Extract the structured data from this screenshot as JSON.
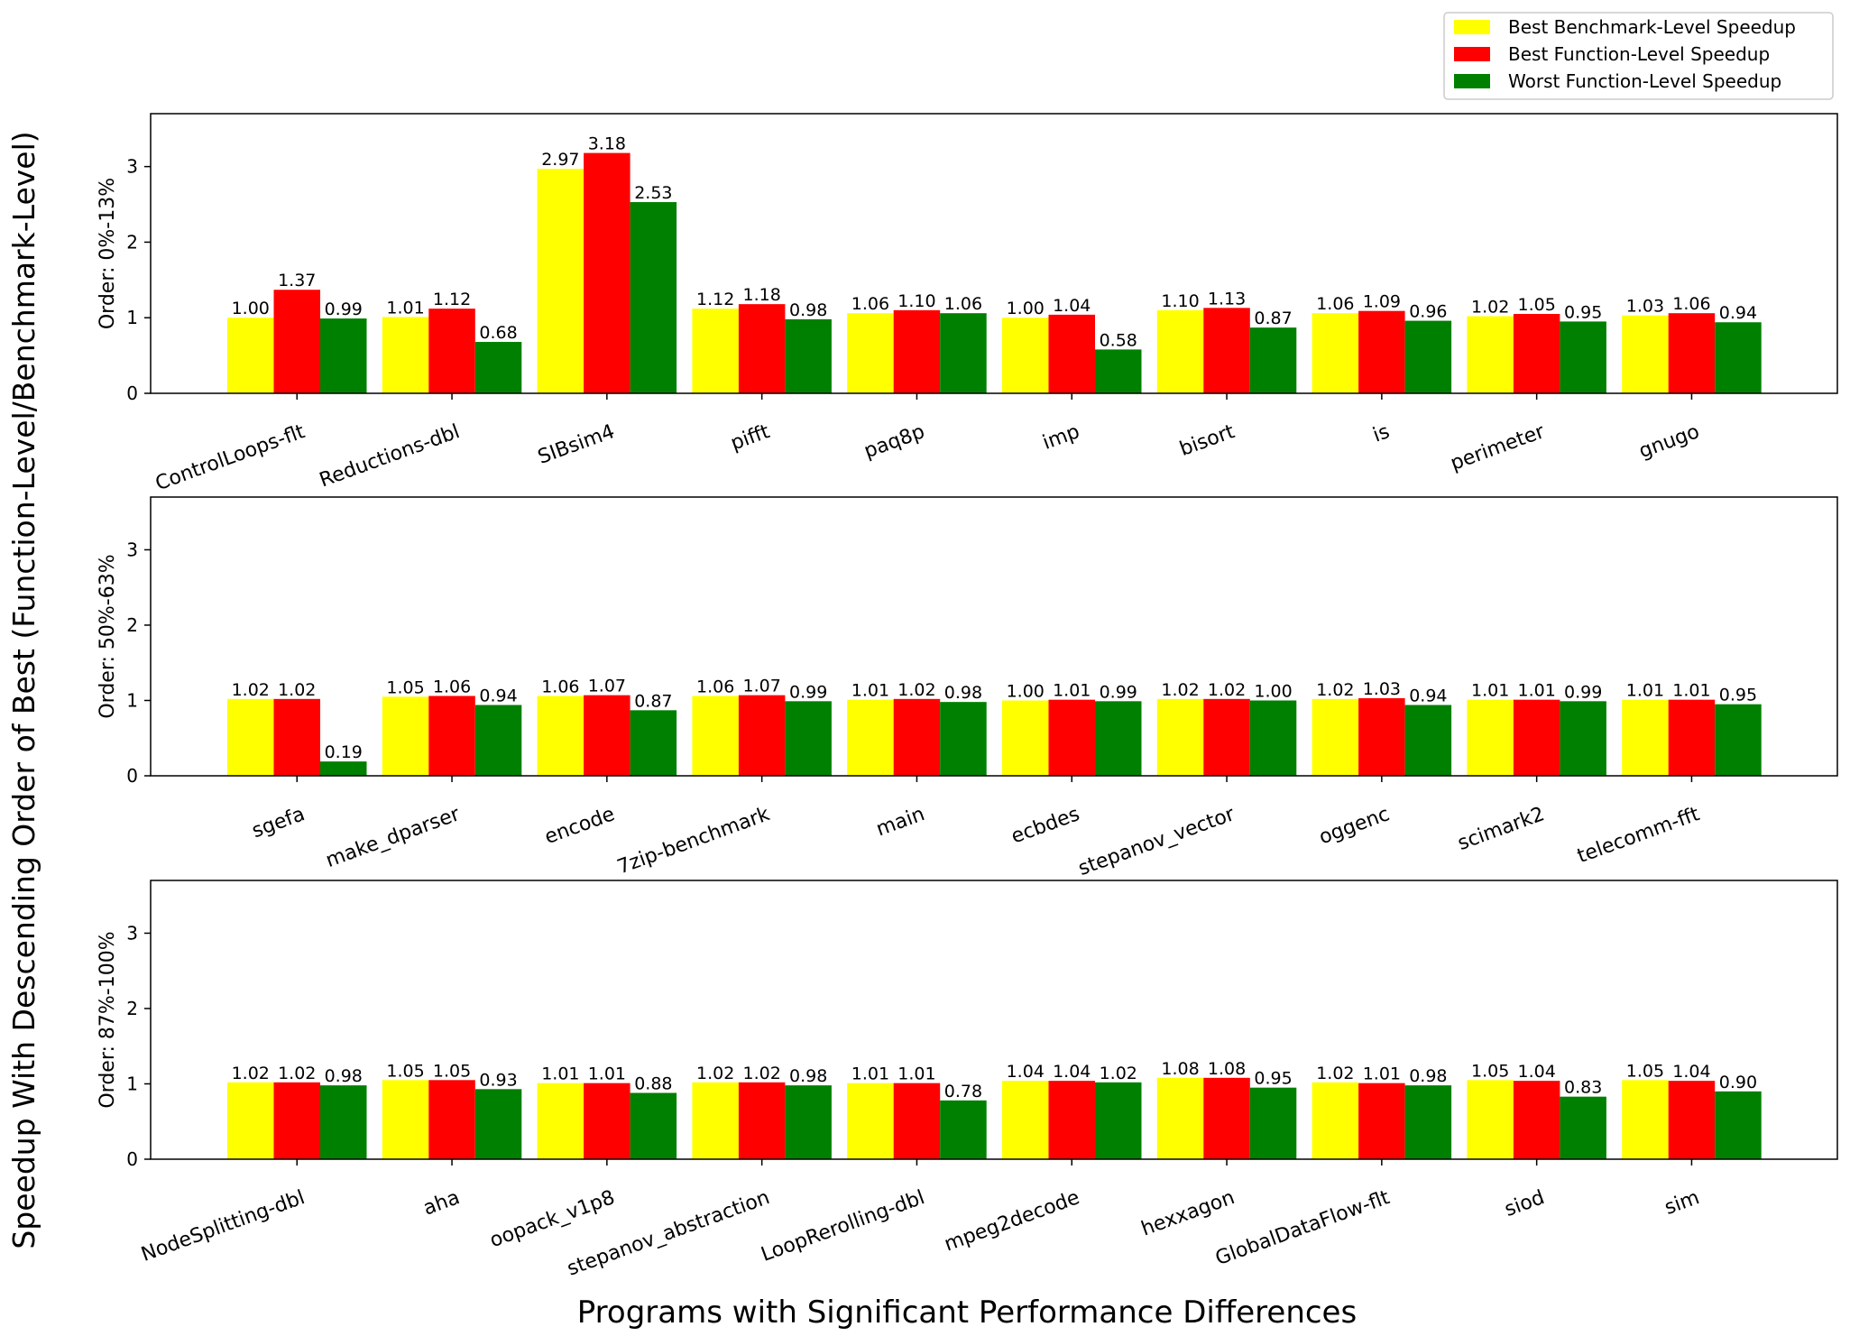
{
  "figure": {
    "ylabel": "Speedup With Descending Order of Best (Function-Level/Benchmark-Level)",
    "xlabel": "Programs with Significant Performance Differences"
  },
  "legend": {
    "placement": "top-right",
    "entries": [
      {
        "label": "Best Benchmark-Level Speedup",
        "color": "#ffff00"
      },
      {
        "label": "Best Function-Level Speedup",
        "color": "#ff0000"
      },
      {
        "label": "Worst Function-Level Speedup",
        "color": "#008000"
      }
    ]
  },
  "chart_data": [
    {
      "type": "bar",
      "ylabel": "Order: 0%-13%",
      "ylim": [
        0,
        3.7
      ],
      "yticks": [
        0,
        1,
        2,
        3
      ],
      "categories": [
        "ControlLoops-flt",
        "Reductions-dbl",
        "SIBsim4",
        "pifft",
        "paq8p",
        "imp",
        "bisort",
        "is",
        "perimeter",
        "gnugo"
      ],
      "series": [
        {
          "name": "Best Benchmark-Level Speedup",
          "color": "#ffff00",
          "values": [
            1.0,
            1.01,
            2.97,
            1.12,
            1.06,
            1.0,
            1.1,
            1.06,
            1.02,
            1.03
          ]
        },
        {
          "name": "Best Function-Level Speedup",
          "color": "#ff0000",
          "values": [
            1.37,
            1.12,
            3.18,
            1.18,
            1.1,
            1.04,
            1.13,
            1.09,
            1.05,
            1.06
          ]
        },
        {
          "name": "Worst Function-Level Speedup",
          "color": "#008000",
          "values": [
            0.99,
            0.68,
            2.53,
            0.98,
            1.06,
            0.58,
            0.87,
            0.96,
            0.95,
            0.94
          ]
        }
      ]
    },
    {
      "type": "bar",
      "ylabel": "Order: 50%-63%",
      "ylim": [
        0,
        3.7
      ],
      "yticks": [
        0,
        1,
        2,
        3
      ],
      "categories": [
        "sgefa",
        "make_dparser",
        "encode",
        "7zip-benchmark",
        "main",
        "ecbdes",
        "stepanov_vector",
        "oggenc",
        "scimark2",
        "telecomm-fft"
      ],
      "series": [
        {
          "name": "Best Benchmark-Level Speedup",
          "color": "#ffff00",
          "values": [
            1.02,
            1.05,
            1.06,
            1.06,
            1.01,
            1.0,
            1.02,
            1.02,
            1.01,
            1.01
          ]
        },
        {
          "name": "Best Function-Level Speedup",
          "color": "#ff0000",
          "values": [
            1.02,
            1.06,
            1.07,
            1.07,
            1.02,
            1.01,
            1.02,
            1.03,
            1.01,
            1.01
          ]
        },
        {
          "name": "Worst Function-Level Speedup",
          "color": "#008000",
          "values": [
            0.19,
            0.94,
            0.87,
            0.99,
            0.98,
            0.99,
            1.0,
            0.94,
            0.99,
            0.95
          ]
        }
      ]
    },
    {
      "type": "bar",
      "ylabel": "Order: 87%-100%",
      "ylim": [
        0,
        3.7
      ],
      "yticks": [
        0,
        1,
        2,
        3
      ],
      "categories": [
        "NodeSplitting-dbl",
        "aha",
        "oopack_v1p8",
        "stepanov_abstraction",
        "LoopRerolling-dbl",
        "mpeg2decode",
        "hexxagon",
        "GlobalDataFlow-flt",
        "siod",
        "sim"
      ],
      "series": [
        {
          "name": "Best Benchmark-Level Speedup",
          "color": "#ffff00",
          "values": [
            1.02,
            1.05,
            1.01,
            1.02,
            1.01,
            1.04,
            1.08,
            1.02,
            1.05,
            1.05
          ]
        },
        {
          "name": "Best Function-Level Speedup",
          "color": "#ff0000",
          "values": [
            1.02,
            1.05,
            1.01,
            1.02,
            1.01,
            1.04,
            1.08,
            1.01,
            1.04,
            1.04
          ]
        },
        {
          "name": "Worst Function-Level Speedup",
          "color": "#008000",
          "values": [
            0.98,
            0.93,
            0.88,
            0.98,
            0.78,
            1.02,
            0.95,
            0.98,
            0.83,
            0.9
          ]
        }
      ]
    }
  ]
}
